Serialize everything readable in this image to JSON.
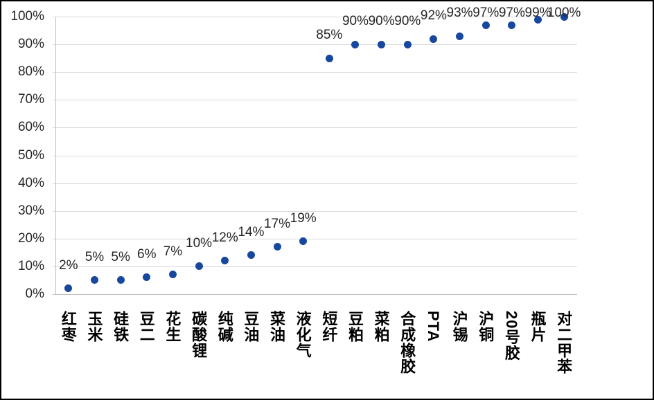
{
  "chart_data": {
    "type": "scatter",
    "categories": [
      "红枣",
      "玉米",
      "硅铁",
      "豆二",
      "花生",
      "碳酸锂",
      "纯碱",
      "豆油",
      "菜油",
      "液化气",
      "短纤",
      "豆粕",
      "菜粕",
      "合成橡胶",
      "PTA",
      "沪锡",
      "沪铜",
      "20号胶",
      "瓶片",
      "对二甲苯"
    ],
    "values": [
      2,
      5,
      5,
      6,
      7,
      10,
      12,
      14,
      17,
      19,
      85,
      90,
      90,
      90,
      92,
      93,
      97,
      97,
      99,
      100
    ],
    "point_labels": [
      "2%",
      "5%",
      "5%",
      "6%",
      "7%",
      "10%",
      "12%",
      "14%",
      "17%",
      "19%",
      "85%",
      "90%",
      "90%",
      "90%",
      "92%",
      "93%",
      "97%",
      "97%",
      "99%",
      "100%"
    ],
    "title": "",
    "xlabel": "",
    "ylabel": "",
    "ylim": [
      0,
      100
    ],
    "y_tick_labels": [
      "0%",
      "10%",
      "20%",
      "30%",
      "40%",
      "50%",
      "60%",
      "70%",
      "80%",
      "90%",
      "100%"
    ],
    "grid": true,
    "legend": "none",
    "marker_color": "#17479e",
    "gridline_color": "#d9d9d9",
    "axis_line_color": "#bfbfbf",
    "label_text_color": "#262626",
    "category_text_color": "#000000"
  }
}
